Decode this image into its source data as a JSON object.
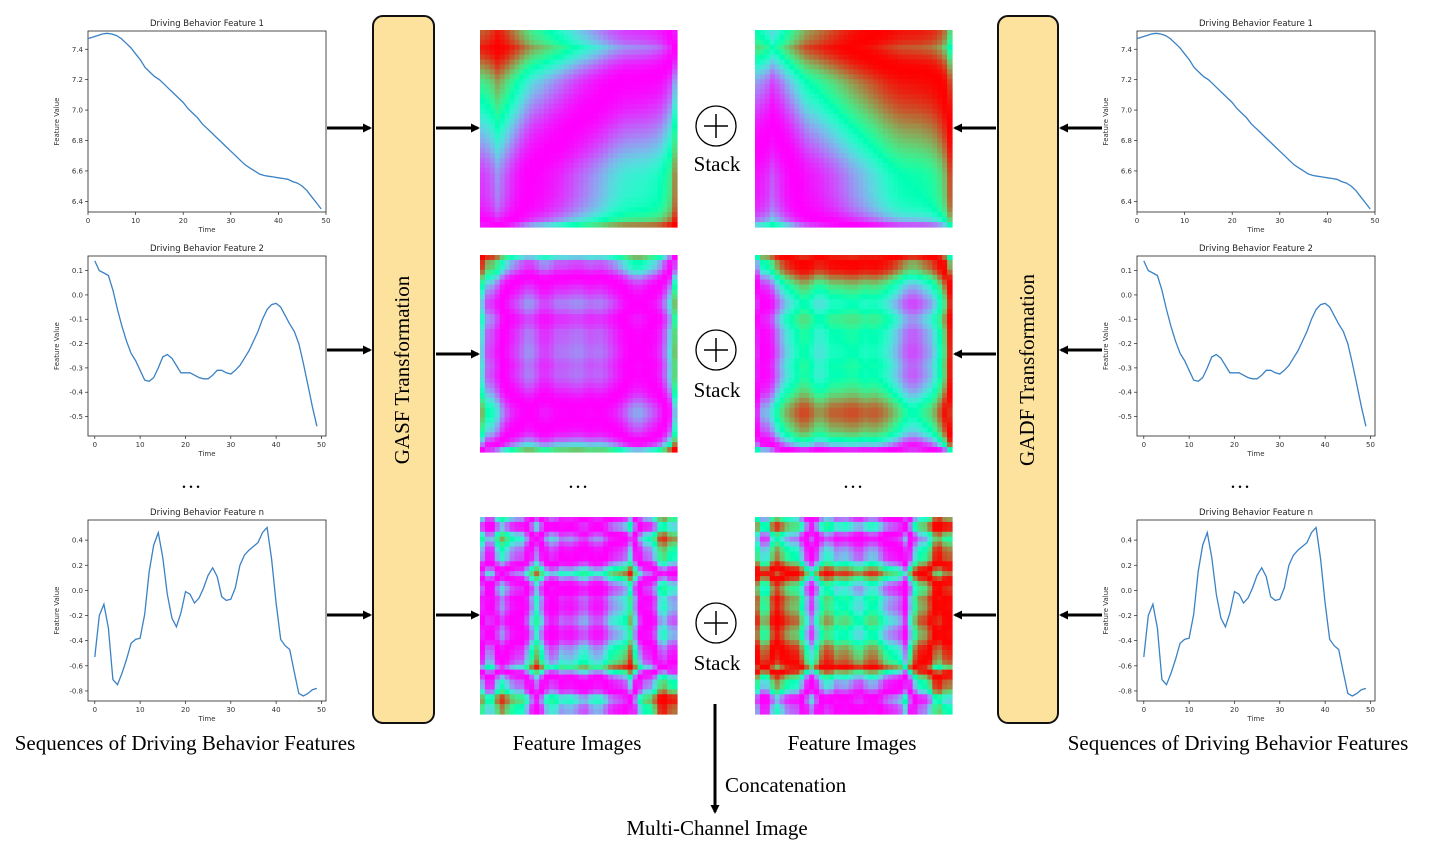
{
  "transforms": {
    "left": "GASF Transformation",
    "right": "GADF Transformation"
  },
  "captions": {
    "left_sequences": "Sequences of Driving Behavior Features",
    "right_sequences": "Sequences of Driving Behavior Features",
    "left_images": "Feature Images",
    "right_images": "Feature Images",
    "concatenation": "Concatenation",
    "output": "Multi-Channel Image",
    "stack": "Stack",
    "ellipsis": "…"
  },
  "colors": {
    "transform_box": "#fde29e",
    "series_line": "#3b82c4",
    "colormap": "rainbow"
  },
  "chart_data": [
    {
      "type": "line",
      "title": "Driving Behavior Feature 1",
      "xlabel": "Time",
      "ylabel": "Feature Value",
      "xlim": [
        0,
        50
      ],
      "ylim": [
        6.33,
        7.52
      ],
      "xticks": [
        0,
        10,
        20,
        30,
        40,
        50
      ],
      "yticks": [
        6.4,
        6.6,
        6.8,
        7.0,
        7.2,
        7.4
      ],
      "x": [
        0,
        1,
        2,
        3,
        4,
        5,
        6,
        7,
        8,
        9,
        10,
        11,
        12,
        13,
        14,
        15,
        16,
        17,
        18,
        19,
        20,
        21,
        22,
        23,
        24,
        25,
        26,
        27,
        28,
        29,
        30,
        31,
        32,
        33,
        34,
        35,
        36,
        37,
        38,
        39,
        40,
        41,
        42,
        43,
        44,
        45,
        46,
        47,
        48,
        49
      ],
      "values": [
        7.47,
        7.48,
        7.49,
        7.5,
        7.505,
        7.5,
        7.49,
        7.47,
        7.44,
        7.41,
        7.37,
        7.33,
        7.28,
        7.25,
        7.22,
        7.2,
        7.17,
        7.14,
        7.11,
        7.08,
        7.05,
        7.01,
        6.98,
        6.95,
        6.91,
        6.88,
        6.85,
        6.82,
        6.79,
        6.76,
        6.73,
        6.7,
        6.67,
        6.64,
        6.62,
        6.6,
        6.58,
        6.57,
        6.565,
        6.56,
        6.555,
        6.55,
        6.545,
        6.53,
        6.52,
        6.5,
        6.47,
        6.43,
        6.39,
        6.35
      ]
    },
    {
      "type": "line",
      "title": "Driving Behavior Feature 2",
      "xlabel": "Time",
      "ylabel": "Feature Value",
      "xlim": [
        -1.5,
        51
      ],
      "ylim": [
        -0.58,
        0.16
      ],
      "xticks": [
        0,
        10,
        20,
        30,
        40,
        50
      ],
      "yticks": [
        -0.5,
        -0.4,
        -0.3,
        -0.2,
        -0.1,
        0.0,
        0.1
      ],
      "x": [
        0,
        1,
        2,
        3,
        4,
        5,
        6,
        7,
        8,
        9,
        10,
        11,
        12,
        13,
        14,
        15,
        16,
        17,
        18,
        19,
        20,
        21,
        22,
        23,
        24,
        25,
        26,
        27,
        28,
        29,
        30,
        31,
        32,
        33,
        34,
        35,
        36,
        37,
        38,
        39,
        40,
        41,
        42,
        43,
        44,
        45,
        46,
        47,
        48,
        49
      ],
      "values": [
        0.14,
        0.1,
        0.09,
        0.08,
        0.02,
        -0.06,
        -0.13,
        -0.19,
        -0.24,
        -0.27,
        -0.31,
        -0.35,
        -0.355,
        -0.34,
        -0.3,
        -0.255,
        -0.245,
        -0.26,
        -0.29,
        -0.32,
        -0.32,
        -0.32,
        -0.33,
        -0.34,
        -0.345,
        -0.345,
        -0.33,
        -0.31,
        -0.31,
        -0.32,
        -0.325,
        -0.31,
        -0.29,
        -0.26,
        -0.23,
        -0.19,
        -0.15,
        -0.1,
        -0.06,
        -0.04,
        -0.035,
        -0.05,
        -0.085,
        -0.12,
        -0.15,
        -0.2,
        -0.28,
        -0.37,
        -0.46,
        -0.54
      ]
    },
    {
      "type": "line",
      "title": "Driving Behavior Feature n",
      "xlabel": "Time",
      "ylabel": "Feature Value",
      "xlim": [
        -1.5,
        51
      ],
      "ylim": [
        -0.88,
        0.56
      ],
      "xticks": [
        0,
        10,
        20,
        30,
        40,
        50
      ],
      "yticks": [
        -0.8,
        -0.6,
        -0.4,
        -0.2,
        0.0,
        0.2,
        0.4
      ],
      "x": [
        0,
        1,
        2,
        3,
        4,
        5,
        6,
        7,
        8,
        9,
        10,
        11,
        12,
        13,
        14,
        15,
        16,
        17,
        18,
        19,
        20,
        21,
        22,
        23,
        24,
        25,
        26,
        27,
        28,
        29,
        30,
        31,
        32,
        33,
        34,
        35,
        36,
        37,
        38,
        39,
        40,
        41,
        42,
        43,
        44,
        45,
        46,
        47,
        48,
        49
      ],
      "values": [
        -0.53,
        -0.2,
        -0.11,
        -0.3,
        -0.71,
        -0.75,
        -0.66,
        -0.55,
        -0.42,
        -0.39,
        -0.38,
        -0.19,
        0.15,
        0.36,
        0.46,
        0.26,
        -0.03,
        -0.22,
        -0.29,
        -0.18,
        -0.01,
        -0.03,
        -0.1,
        -0.06,
        0.02,
        0.12,
        0.18,
        0.11,
        -0.05,
        -0.08,
        -0.07,
        0.02,
        0.2,
        0.28,
        0.32,
        0.35,
        0.38,
        0.46,
        0.5,
        0.25,
        -0.1,
        -0.39,
        -0.44,
        -0.47,
        -0.65,
        -0.82,
        -0.84,
        -0.82,
        -0.79,
        -0.78
      ]
    }
  ]
}
